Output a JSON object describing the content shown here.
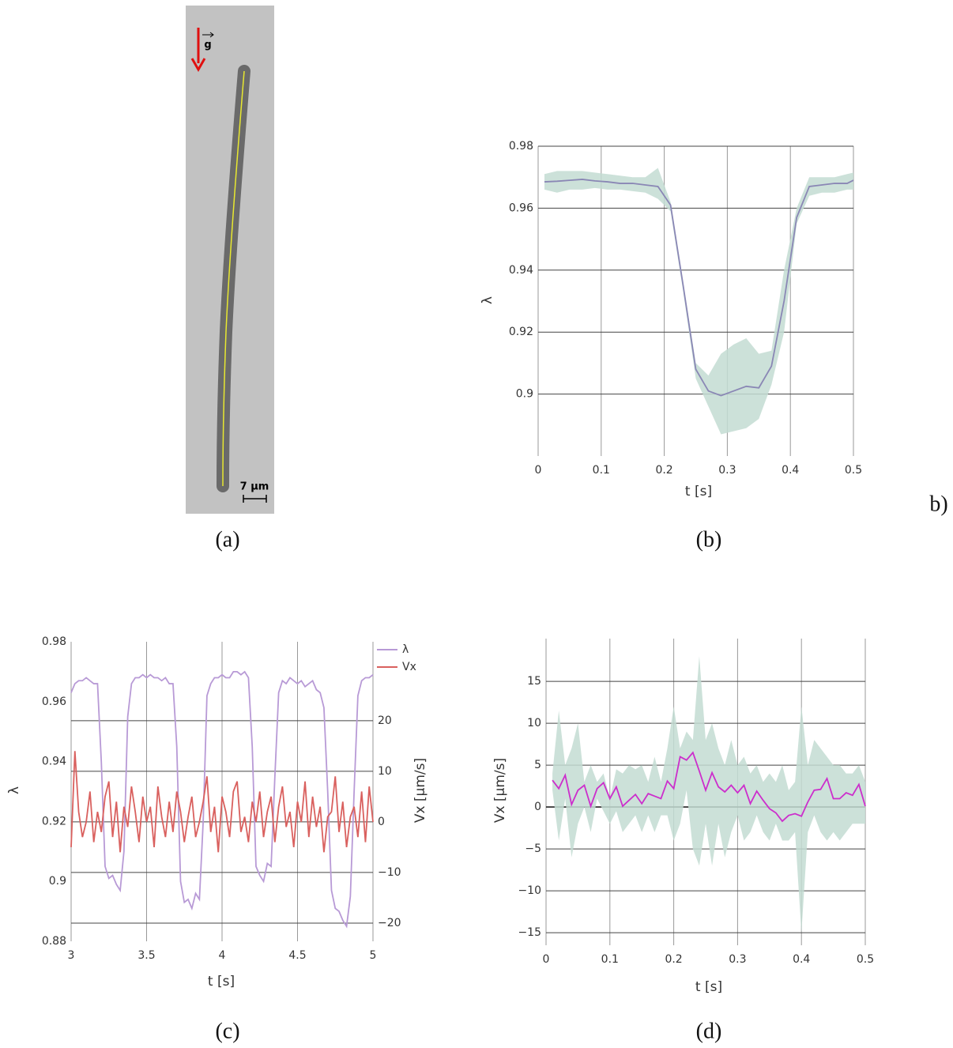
{
  "image": {
    "gravity_label": "g",
    "scale_label": "7 µm",
    "caption": "(a)"
  },
  "side_label": "b)",
  "chart_data": [
    {
      "type": "line",
      "caption": "(b)",
      "xlabel": "t [s]",
      "ylabel": "λ",
      "x": [
        0.01,
        0.03,
        0.05,
        0.07,
        0.09,
        0.11,
        0.13,
        0.15,
        0.17,
        0.19,
        0.21,
        0.23,
        0.25,
        0.27,
        0.29,
        0.31,
        0.33,
        0.35,
        0.37,
        0.39,
        0.41,
        0.43,
        0.45,
        0.47,
        0.49,
        0.5
      ],
      "series": [
        {
          "color": "#8a87b5",
          "values": [
            0.9685,
            0.9687,
            0.969,
            0.9693,
            0.9688,
            0.9685,
            0.968,
            0.968,
            0.9675,
            0.967,
            0.961,
            0.935,
            0.908,
            0.901,
            0.8995,
            0.901,
            0.9025,
            0.902,
            0.909,
            0.93,
            0.957,
            0.967,
            0.9675,
            0.968,
            0.968,
            0.969
          ]
        }
      ],
      "band": {
        "color": "#c3dcd2",
        "upper": [
          0.971,
          0.972,
          0.972,
          0.972,
          0.9715,
          0.971,
          0.9705,
          0.97,
          0.97,
          0.973,
          0.962,
          0.936,
          0.91,
          0.906,
          0.913,
          0.916,
          0.918,
          0.913,
          0.914,
          0.94,
          0.96,
          0.97,
          0.97,
          0.97,
          0.971,
          0.9715
        ],
        "lower": [
          0.966,
          0.965,
          0.966,
          0.966,
          0.9665,
          0.966,
          0.966,
          0.9655,
          0.965,
          0.963,
          0.959,
          0.933,
          0.905,
          0.896,
          0.887,
          0.888,
          0.889,
          0.892,
          0.903,
          0.92,
          0.955,
          0.964,
          0.965,
          0.965,
          0.966,
          0.966
        ]
      },
      "xlim": [
        0,
        0.5
      ],
      "xticks": [
        0,
        0.1,
        0.2,
        0.3,
        0.4,
        0.5
      ],
      "ylim": [
        0.88,
        0.98
      ],
      "yticks": [
        0.9,
        0.92,
        0.94,
        0.96,
        0.98
      ],
      "grid_axis": "y"
    },
    {
      "type": "line",
      "caption": "(c)",
      "xlabel": "t [s]",
      "ylabel": "λ",
      "y2label": "Vx [µm/s]",
      "x": [
        3,
        3.025,
        3.05,
        3.075,
        3.1,
        3.125,
        3.15,
        3.175,
        3.2,
        3.225,
        3.25,
        3.275,
        3.3,
        3.325,
        3.35,
        3.375,
        3.4,
        3.425,
        3.45,
        3.475,
        3.5,
        3.525,
        3.55,
        3.575,
        3.6,
        3.625,
        3.65,
        3.675,
        3.7,
        3.725,
        3.75,
        3.775,
        3.8,
        3.825,
        3.85,
        3.875,
        3.9,
        3.925,
        3.95,
        3.975,
        4,
        4.025,
        4.05,
        4.075,
        4.1,
        4.125,
        4.15,
        4.175,
        4.2,
        4.225,
        4.25,
        4.275,
        4.3,
        4.325,
        4.35,
        4.375,
        4.4,
        4.425,
        4.45,
        4.475,
        4.5,
        4.525,
        4.55,
        4.575,
        4.6,
        4.625,
        4.65,
        4.675,
        4.7,
        4.725,
        4.75,
        4.775,
        4.8,
        4.825,
        4.85,
        4.875,
        4.9,
        4.925,
        4.95,
        4.975,
        5
      ],
      "series": [
        {
          "name": "λ",
          "color": "#b89ad6",
          "values": [
            0.963,
            0.966,
            0.967,
            0.967,
            0.968,
            0.967,
            0.966,
            0.966,
            0.94,
            0.905,
            0.901,
            0.902,
            0.899,
            0.897,
            0.91,
            0.955,
            0.966,
            0.968,
            0.968,
            0.969,
            0.968,
            0.969,
            0.968,
            0.968,
            0.967,
            0.968,
            0.966,
            0.966,
            0.945,
            0.9,
            0.893,
            0.894,
            0.891,
            0.896,
            0.894,
            0.92,
            0.962,
            0.966,
            0.968,
            0.968,
            0.969,
            0.968,
            0.968,
            0.97,
            0.97,
            0.969,
            0.97,
            0.968,
            0.945,
            0.905,
            0.902,
            0.9,
            0.906,
            0.905,
            0.935,
            0.963,
            0.967,
            0.966,
            0.968,
            0.967,
            0.966,
            0.967,
            0.965,
            0.966,
            0.967,
            0.964,
            0.963,
            0.958,
            0.93,
            0.897,
            0.891,
            0.89,
            0.887,
            0.885,
            0.895,
            0.93,
            0.962,
            0.967,
            0.968,
            0.968,
            0.969
          ]
        },
        {
          "name": "Vx",
          "color": "#d9605e",
          "axis": "y2",
          "values": [
            -5,
            14,
            2,
            -3,
            0,
            6,
            -4,
            2,
            -2,
            5,
            8,
            -3,
            4,
            -6,
            3,
            -1,
            7,
            2,
            -4,
            5,
            0,
            3,
            -5,
            7,
            1,
            -3,
            4,
            -2,
            6,
            2,
            -4,
            1,
            5,
            -3,
            0,
            4,
            9,
            -2,
            3,
            -6,
            5,
            2,
            -3,
            6,
            8,
            -2,
            1,
            -4,
            4,
            0,
            6,
            -3,
            2,
            5,
            -4,
            3,
            7,
            -1,
            2,
            -5,
            4,
            0,
            8,
            -3,
            5,
            -1,
            3,
            -6,
            1,
            2,
            9,
            -2,
            4,
            -5,
            1,
            3,
            -3,
            6,
            -4,
            7,
            0
          ]
        }
      ],
      "xlim": [
        3,
        5
      ],
      "xticks": [
        3,
        3.5,
        4,
        4.5,
        5
      ],
      "ylim": [
        0.88,
        0.98
      ],
      "yticks": [
        0.88,
        0.9,
        0.92,
        0.94,
        0.96,
        0.98
      ],
      "y2lim": [
        -23.6,
        35.6
      ],
      "y2ticks": [
        {
          "value": -20,
          "label": "−20"
        },
        {
          "value": -10,
          "label": "−10"
        },
        0,
        10,
        20
      ],
      "grid_axis": "y2",
      "legend": "top-right"
    },
    {
      "type": "line",
      "caption": "(d)",
      "xlabel": "t [s]",
      "ylabel": "Vx [µm/s]",
      "x": [
        0.01,
        0.02,
        0.03,
        0.04,
        0.05,
        0.06,
        0.07,
        0.08,
        0.09,
        0.1,
        0.11,
        0.12,
        0.13,
        0.14,
        0.15,
        0.16,
        0.17,
        0.18,
        0.19,
        0.2,
        0.21,
        0.22,
        0.23,
        0.24,
        0.25,
        0.26,
        0.27,
        0.28,
        0.29,
        0.3,
        0.31,
        0.32,
        0.33,
        0.34,
        0.35,
        0.36,
        0.37,
        0.38,
        0.39,
        0.4,
        0.41,
        0.42,
        0.43,
        0.44,
        0.45,
        0.46,
        0.47,
        0.48,
        0.49,
        0.5
      ],
      "series": [
        {
          "color": "#cc2ecc",
          "values": [
            3.2,
            2.2,
            3.8,
            0.3,
            2,
            2.6,
            0.1,
            2.2,
            2.9,
            1,
            2.4,
            0.1,
            0.8,
            1.5,
            0.4,
            1.6,
            1.3,
            1,
            3.1,
            2.2,
            6,
            5.6,
            6.5,
            4.3,
            2,
            4.1,
            2.4,
            1.8,
            2.6,
            1.7,
            2.6,
            0.4,
            1.9,
            0.8,
            -0.2,
            -0.7,
            -1.7,
            -1,
            -0.8,
            -1.1,
            0.6,
            2,
            2.1,
            3.4,
            1,
            1,
            1.7,
            1.4,
            2.7,
            0.1
          ]
        }
      ],
      "band": {
        "color": "#c3dcd2",
        "upper": [
          4,
          11.5,
          5,
          7,
          10,
          3,
          5,
          3,
          4,
          1,
          4.5,
          4,
          5,
          4.5,
          5,
          3,
          6,
          3,
          7,
          12,
          7,
          9,
          8,
          18,
          8,
          10,
          7,
          5,
          8,
          5,
          6,
          4,
          5,
          3,
          4,
          3,
          5,
          2,
          3,
          12,
          5,
          8,
          7,
          6,
          5,
          5,
          4,
          4,
          5,
          3
        ],
        "lower": [
          2,
          -4,
          1,
          -6,
          -2,
          0,
          -3,
          1,
          -0.5,
          -2,
          -0.5,
          -3,
          -2,
          -1,
          -3,
          -1,
          -3,
          -1,
          -1,
          -4,
          -2,
          2,
          -5,
          -7,
          -2,
          -7,
          -2,
          -6,
          -3,
          -1,
          -4,
          -3,
          -1,
          -3,
          -4,
          -2,
          -4,
          -4,
          -3,
          -15,
          -3,
          -1,
          -3,
          -4,
          -3,
          -4,
          -3,
          -2,
          -2,
          -2
        ]
      },
      "xlim": [
        0,
        0.5
      ],
      "xticks": [
        0,
        0.1,
        0.2,
        0.3,
        0.4,
        0.5
      ],
      "ylim": [
        -16.5,
        20.1
      ],
      "yticks": [
        {
          "value": -15,
          "label": "−15"
        },
        {
          "value": -10,
          "label": "−10"
        },
        {
          "value": -5,
          "label": "−5"
        },
        0,
        5,
        10,
        15
      ],
      "grid_axis": "y",
      "zero_line": true
    }
  ]
}
